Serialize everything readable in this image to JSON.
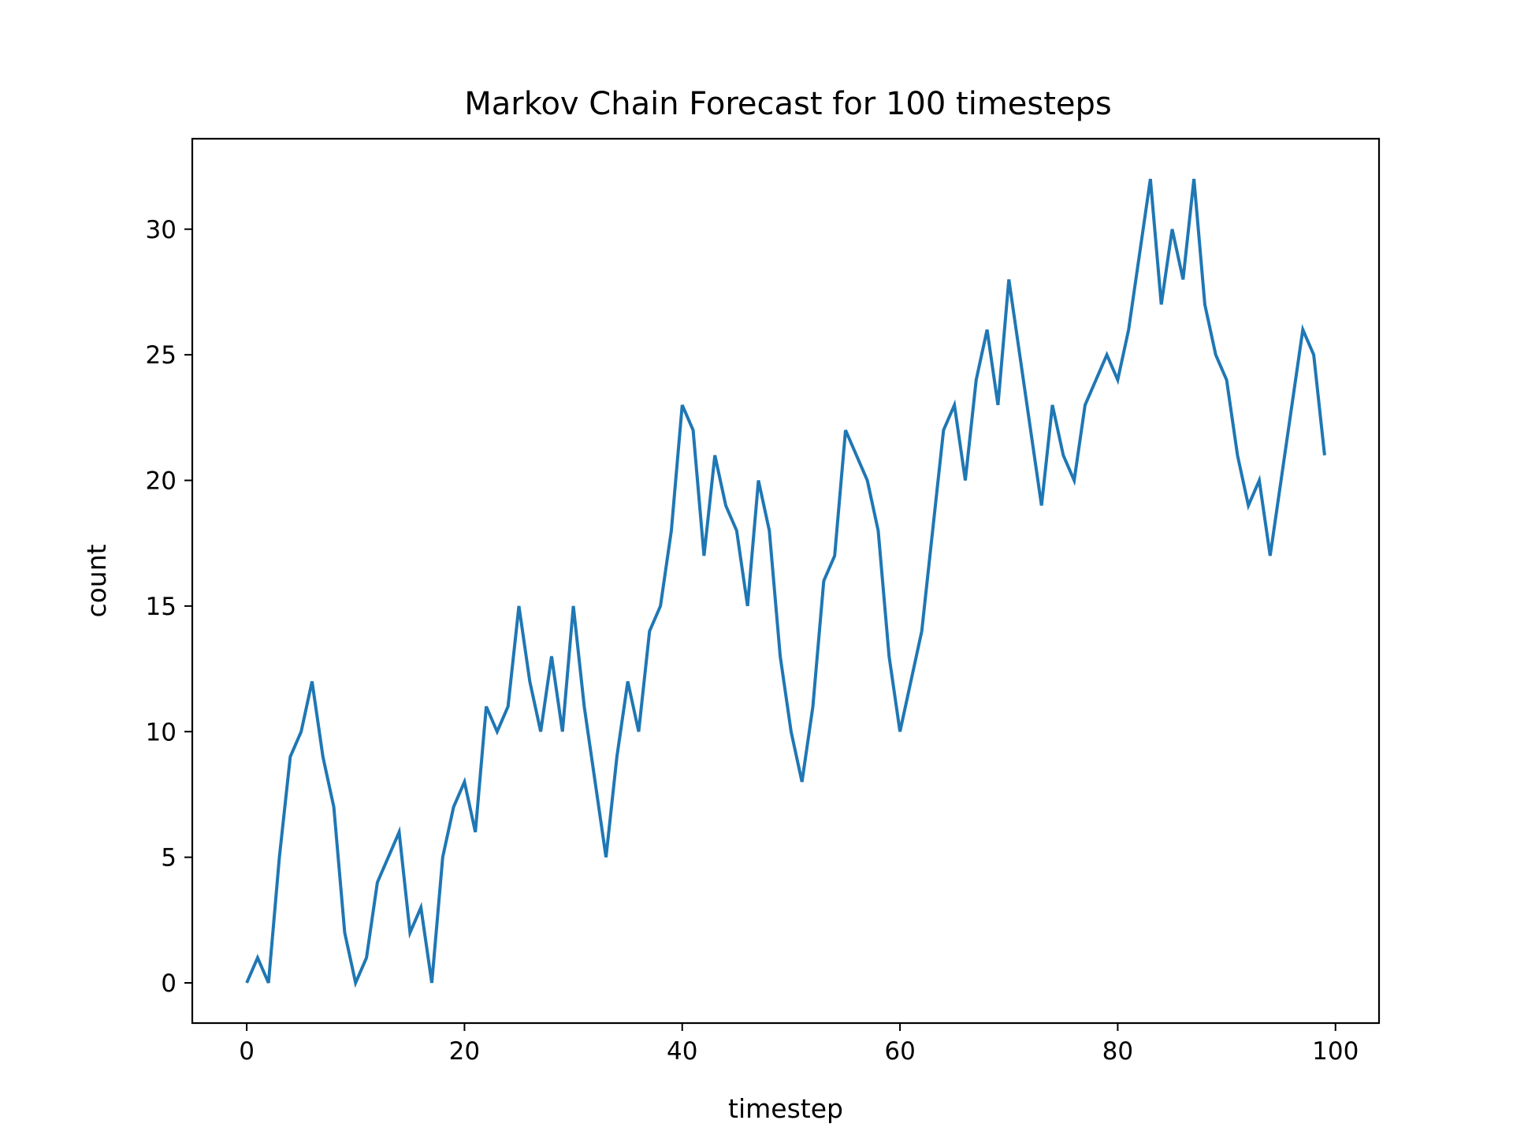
{
  "chart_data": {
    "type": "line",
    "title": "Markov Chain Forecast for 100 timesteps",
    "xlabel": "timestep",
    "ylabel": "count",
    "xlim": [
      -5,
      104
    ],
    "ylim": [
      -1.6,
      33.6
    ],
    "xticks": [
      0,
      20,
      40,
      60,
      80,
      100
    ],
    "yticks": [
      0,
      5,
      10,
      15,
      20,
      25,
      30
    ],
    "grid": false,
    "legend": "none",
    "series": [
      {
        "color": "#1f77b4",
        "x": [
          0,
          1,
          2,
          3,
          4,
          5,
          6,
          7,
          8,
          9,
          10,
          11,
          12,
          13,
          14,
          15,
          16,
          17,
          18,
          19,
          20,
          21,
          22,
          23,
          24,
          25,
          26,
          27,
          28,
          29,
          30,
          31,
          32,
          33,
          34,
          35,
          36,
          37,
          38,
          39,
          40,
          41,
          42,
          43,
          44,
          45,
          46,
          47,
          48,
          49,
          50,
          51,
          52,
          53,
          54,
          55,
          56,
          57,
          58,
          59,
          60,
          61,
          62,
          63,
          64,
          65,
          66,
          67,
          68,
          69,
          70,
          71,
          72,
          73,
          74,
          75,
          76,
          77,
          78,
          79,
          80,
          81,
          82,
          83,
          84,
          85,
          86,
          87,
          88,
          89,
          90,
          91,
          92,
          93,
          94,
          95,
          96,
          97,
          98,
          99
        ],
        "values": [
          0,
          1,
          0,
          5,
          9,
          10,
          12,
          9,
          7,
          2,
          0,
          1,
          4,
          5,
          6,
          2,
          3,
          0,
          5,
          7,
          8,
          6,
          11,
          10,
          11,
          15,
          12,
          10,
          13,
          10,
          15,
          11,
          8,
          5,
          9,
          12,
          10,
          14,
          15,
          18,
          23,
          22,
          17,
          21,
          19,
          18,
          15,
          20,
          18,
          13,
          10,
          8,
          11,
          16,
          17,
          22,
          21,
          20,
          18,
          13,
          10,
          12,
          14,
          18,
          22,
          23,
          20,
          24,
          26,
          23,
          28,
          25,
          22,
          19,
          23,
          21,
          20,
          23,
          24,
          25,
          24,
          26,
          29,
          32,
          27,
          30,
          28,
          32,
          27,
          25,
          24,
          21,
          19,
          20,
          17,
          20,
          23,
          26,
          25,
          21
        ]
      }
    ]
  }
}
